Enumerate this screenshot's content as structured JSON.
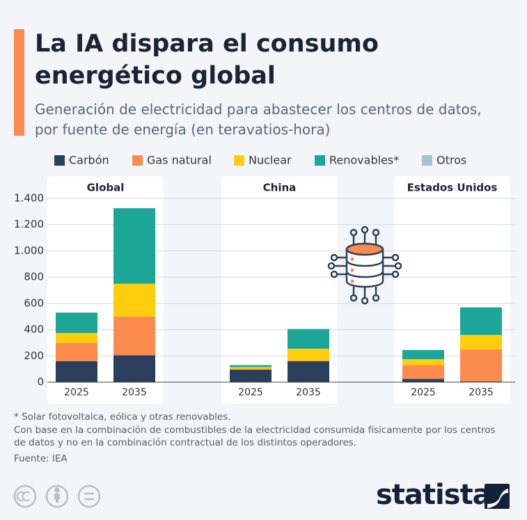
{
  "chart_data": {
    "type": "bar",
    "stacked": true,
    "title": "La IA dispara el consumo energético global",
    "subtitle": "Generación de electricidad para abastecer los centros de datos, por fuente de energía (en teravatios-hora)",
    "groups": [
      "Global",
      "China",
      "Estados Unidos"
    ],
    "categories": [
      "2025",
      "2035",
      "2025",
      "2035",
      "2025",
      "2035"
    ],
    "series": [
      {
        "name": "Carbón",
        "color": "#2b3f5c",
        "values": [
          160,
          205,
          95,
          160,
          25,
          5
        ]
      },
      {
        "name": "Gas natural",
        "color": "#fa8a4e",
        "values": [
          140,
          295,
          5,
          5,
          105,
          245
        ]
      },
      {
        "name": "Nuclear",
        "color": "#fecd0c",
        "values": [
          75,
          250,
          15,
          90,
          45,
          110
        ]
      },
      {
        "name": "Renovables*",
        "color": "#1ba697",
        "values": [
          155,
          575,
          15,
          150,
          70,
          210
        ]
      },
      {
        "name": "Otros",
        "color": "#a8c3ce",
        "values": [
          0,
          0,
          0,
          0,
          0,
          0
        ]
      }
    ],
    "ylim": [
      0,
      1400
    ],
    "yticks": [
      0,
      200,
      400,
      600,
      800,
      {
        "value": 1000,
        "label": "1.000"
      },
      {
        "value": 1200,
        "label": "1.200"
      },
      {
        "value": 1400,
        "label": "1.400"
      }
    ],
    "grid": true,
    "notes": [
      "* Solar fotovoltaica, eólica y otras renovables.",
      "Con base en la combinación de combustibles de la electricidad consumida físicamente por los centros de datos y no en la combinación contractual de los distintos operadores."
    ],
    "source": "Fuente: IEA"
  },
  "brand": "statista"
}
